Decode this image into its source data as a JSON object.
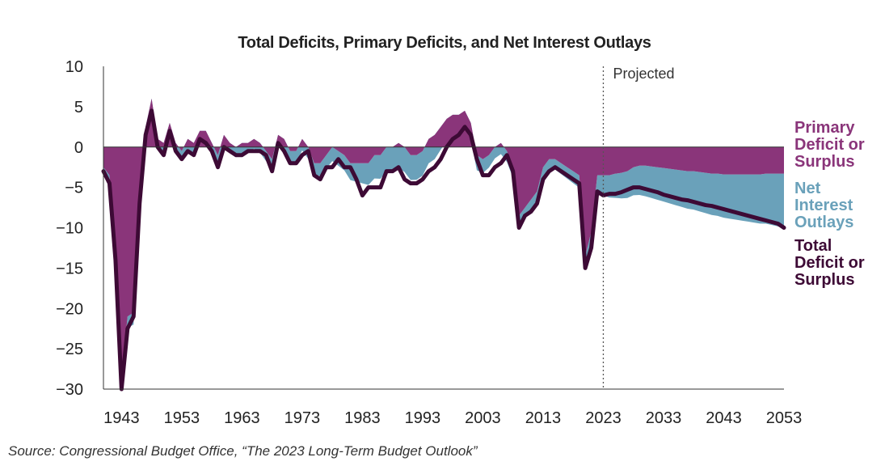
{
  "chart_data": {
    "type": "area",
    "title": "Total Deficits, Primary Deficits, and Net Interest Outlays",
    "xlabel": "",
    "ylabel": "",
    "xlim": [
      1940,
      2053
    ],
    "ylim": [
      -30,
      10
    ],
    "x_ticks": [
      "1943",
      "1953",
      "1963",
      "1973",
      "1983",
      "1993",
      "2003",
      "2013",
      "2023",
      "2033",
      "2043",
      "2053"
    ],
    "y_ticks": [
      "10",
      "5",
      "0",
      "−5",
      "−10",
      "−15",
      "−20",
      "−25",
      "−30"
    ],
    "projected_label": "Projected",
    "projected_start": 2023,
    "grid": false,
    "legend_placement": "right",
    "colors": {
      "primary": "#8a357a",
      "interest": "#6aa1ba",
      "total": "#3d0a35",
      "axis": "#333333"
    },
    "series": [
      {
        "name": "Primary Deficit or Surplus",
        "x": [
          1940,
          1941,
          1942,
          1943,
          1944,
          1945,
          1946,
          1947,
          1948,
          1949,
          1950,
          1951,
          1952,
          1953,
          1954,
          1955,
          1956,
          1957,
          1958,
          1959,
          1960,
          1961,
          1962,
          1963,
          1964,
          1965,
          1966,
          1967,
          1968,
          1969,
          1970,
          1971,
          1972,
          1973,
          1974,
          1975,
          1976,
          1977,
          1978,
          1979,
          1980,
          1981,
          1982,
          1983,
          1984,
          1985,
          1986,
          1987,
          1988,
          1989,
          1990,
          1991,
          1992,
          1993,
          1994,
          1995,
          1996,
          1997,
          1998,
          1999,
          2000,
          2001,
          2002,
          2003,
          2004,
          2005,
          2006,
          2007,
          2008,
          2009,
          2010,
          2011,
          2012,
          2013,
          2014,
          2015,
          2016,
          2017,
          2018,
          2019,
          2020,
          2021,
          2022,
          2023,
          2024,
          2025,
          2026,
          2027,
          2028,
          2029,
          2030,
          2031,
          2032,
          2033,
          2034,
          2035,
          2036,
          2037,
          2038,
          2039,
          2040,
          2041,
          2042,
          2043,
          2044,
          2045,
          2046,
          2047,
          2048,
          2049,
          2050,
          2051,
          2052,
          2053
        ],
        "values": [
          -2.5,
          -3.5,
          -13.5,
          -28.5,
          -21,
          -20.5,
          -5.5,
          2.5,
          6,
          1,
          0.5,
          3,
          0.5,
          -0.5,
          1,
          0.5,
          2,
          2,
          0.5,
          -1,
          1.5,
          0.5,
          0,
          0.5,
          0.5,
          1,
          0.5,
          -0.5,
          -1.5,
          1.5,
          1,
          -0.5,
          -0.5,
          1,
          0,
          -2,
          -2,
          -1,
          0,
          -0.5,
          -1,
          -2,
          -2,
          -2,
          -2,
          -1,
          -1,
          0,
          0,
          0.5,
          0,
          -1,
          -1,
          -0.5,
          1,
          1.5,
          2.5,
          3.5,
          4,
          4,
          4.5,
          3,
          -1,
          -1.5,
          -1,
          0,
          0.5,
          -0.5,
          -2.5,
          -8.5,
          -7.5,
          -6.5,
          -5.5,
          -2.5,
          -1.5,
          -1.5,
          -2,
          -2.5,
          -3,
          -3.5,
          -13.5,
          -10.5,
          -3.5,
          -3.5,
          -3.5,
          -3.3,
          -3.2,
          -3,
          -2.5,
          -2.3,
          -2.3,
          -2.4,
          -2.5,
          -2.6,
          -2.7,
          -2.8,
          -2.9,
          -3,
          -3,
          -3.1,
          -3.2,
          -3.3,
          -3.3,
          -3.4,
          -3.4,
          -3.4,
          -3.4,
          -3.4,
          -3.4,
          -3.4,
          -3.3,
          -3.3,
          -3.3,
          -3.3
        ]
      },
      {
        "name": "Net Interest Outlays",
        "x": [
          1940,
          1945,
          1950,
          1955,
          1960,
          1965,
          1970,
          1975,
          1980,
          1985,
          1990,
          1995,
          2000,
          2005,
          2010,
          2015,
          2020,
          2022,
          2023,
          2025,
          2030,
          2035,
          2040,
          2045,
          2050,
          2053
        ],
        "values": [
          1,
          1.5,
          1.3,
          1.2,
          1.3,
          1.2,
          1.3,
          1.5,
          1.9,
          2.9,
          3.1,
          3,
          2.2,
          1.4,
          1.3,
          1.3,
          1.6,
          1.9,
          2.5,
          3,
          3.8,
          4.4,
          5,
          5.6,
          6.2,
          6.7
        ]
      },
      {
        "name": "Total Deficit or Surplus",
        "x": [
          1940,
          1941,
          1942,
          1943,
          1944,
          1945,
          1946,
          1947,
          1948,
          1949,
          1950,
          1951,
          1952,
          1953,
          1954,
          1955,
          1956,
          1957,
          1958,
          1959,
          1960,
          1961,
          1962,
          1963,
          1964,
          1965,
          1966,
          1967,
          1968,
          1969,
          1970,
          1971,
          1972,
          1973,
          1974,
          1975,
          1976,
          1977,
          1978,
          1979,
          1980,
          1981,
          1982,
          1983,
          1984,
          1985,
          1986,
          1987,
          1988,
          1989,
          1990,
          1991,
          1992,
          1993,
          1994,
          1995,
          1996,
          1997,
          1998,
          1999,
          2000,
          2001,
          2002,
          2003,
          2004,
          2005,
          2006,
          2007,
          2008,
          2009,
          2010,
          2011,
          2012,
          2013,
          2014,
          2015,
          2016,
          2017,
          2018,
          2019,
          2020,
          2021,
          2022,
          2023,
          2024,
          2025,
          2026,
          2027,
          2028,
          2029,
          2030,
          2031,
          2032,
          2033,
          2034,
          2035,
          2036,
          2037,
          2038,
          2039,
          2040,
          2041,
          2042,
          2043,
          2044,
          2045,
          2046,
          2047,
          2048,
          2049,
          2050,
          2051,
          2052,
          2053
        ],
        "values": [
          -3,
          -4.5,
          -14,
          -30,
          -22.5,
          -21,
          -7,
          1.5,
          4.5,
          0,
          -1,
          2,
          -0.5,
          -1.5,
          -0.5,
          -1,
          1,
          0.5,
          -0.5,
          -2.5,
          0,
          -0.5,
          -1,
          -1,
          -0.5,
          -0.5,
          -0.5,
          -1,
          -3,
          0.5,
          -0.5,
          -2,
          -2,
          -1,
          -0.5,
          -3.5,
          -4,
          -2.5,
          -2.5,
          -1.5,
          -2.5,
          -2.5,
          -4,
          -6,
          -5,
          -5,
          -5,
          -3,
          -3,
          -2.5,
          -4,
          -4.5,
          -4.5,
          -4,
          -3,
          -2.5,
          -1.5,
          0,
          1,
          1.5,
          2.5,
          1.5,
          -1.5,
          -3.5,
          -3.5,
          -2.5,
          -2,
          -1,
          -3,
          -10,
          -8.5,
          -8,
          -7,
          -4,
          -3,
          -2.5,
          -3,
          -3.5,
          -4,
          -4.5,
          -15,
          -12.5,
          -5.5,
          -6,
          -5.8,
          -5.8,
          -5.6,
          -5.3,
          -5,
          -5,
          -5.2,
          -5.4,
          -5.6,
          -5.9,
          -6.1,
          -6.3,
          -6.5,
          -6.6,
          -6.8,
          -7,
          -7.2,
          -7.3,
          -7.5,
          -7.7,
          -7.9,
          -8.1,
          -8.3,
          -8.5,
          -8.7,
          -8.9,
          -9.1,
          -9.3,
          -9.5,
          -10
        ]
      }
    ],
    "legend": [
      {
        "lines": [
          "Primary",
          "Deficit or",
          "Surplus"
        ],
        "series": "Primary Deficit or Surplus"
      },
      {
        "lines": [
          "Net",
          "Interest",
          "Outlays"
        ],
        "series": "Net Interest Outlays"
      },
      {
        "lines": [
          "Total",
          "Deficit or",
          "Surplus"
        ],
        "series": "Total Deficit or Surplus"
      }
    ]
  },
  "source_note": "Source: Congressional Budget Office, “The 2023 Long-Term Budget Outlook”"
}
